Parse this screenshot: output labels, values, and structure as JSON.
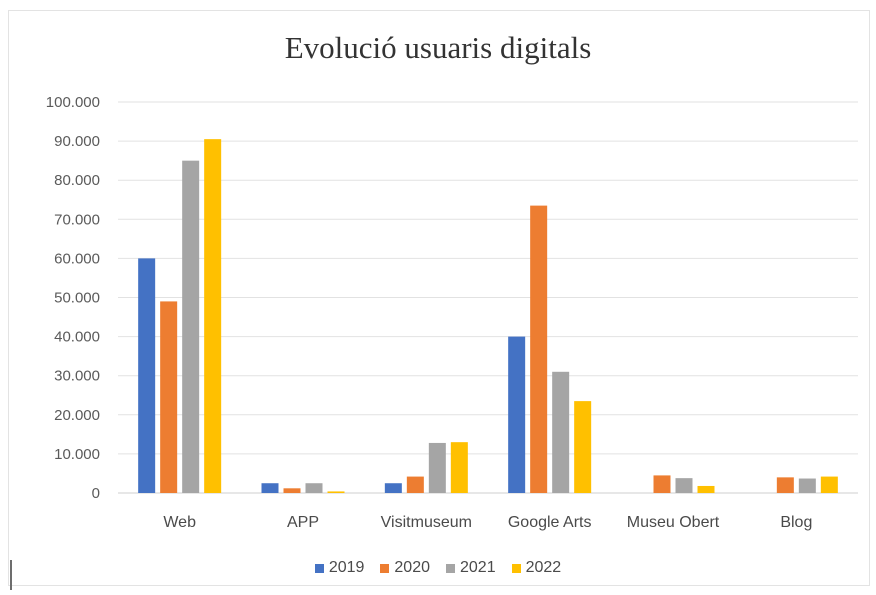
{
  "chart_data": {
    "type": "bar",
    "title": "Evolució usuaris digitals",
    "categories": [
      "Web",
      "APP",
      "Visitmuseum",
      "Google Arts",
      "Museu Obert",
      "Blog"
    ],
    "series": [
      {
        "name": "2019",
        "color": "#4472C4",
        "values": [
          60000,
          2500,
          2500,
          40000,
          0,
          0
        ]
      },
      {
        "name": "2020",
        "color": "#ED7D31",
        "values": [
          49000,
          1200,
          4200,
          73500,
          4500,
          4000
        ]
      },
      {
        "name": "2021",
        "color": "#A5A5A5",
        "values": [
          85000,
          2500,
          12800,
          31000,
          3800,
          3700
        ]
      },
      {
        "name": "2022",
        "color": "#FFC000",
        "values": [
          90500,
          400,
          13000,
          23500,
          1800,
          4200
        ]
      }
    ],
    "ylim": [
      0,
      100000
    ],
    "yticks": [
      "0",
      "10.000",
      "20.000",
      "30.000",
      "40.000",
      "50.000",
      "60.000",
      "70.000",
      "80.000",
      "90.000",
      "100.000"
    ],
    "grid": true,
    "legend_position": "bottom"
  }
}
